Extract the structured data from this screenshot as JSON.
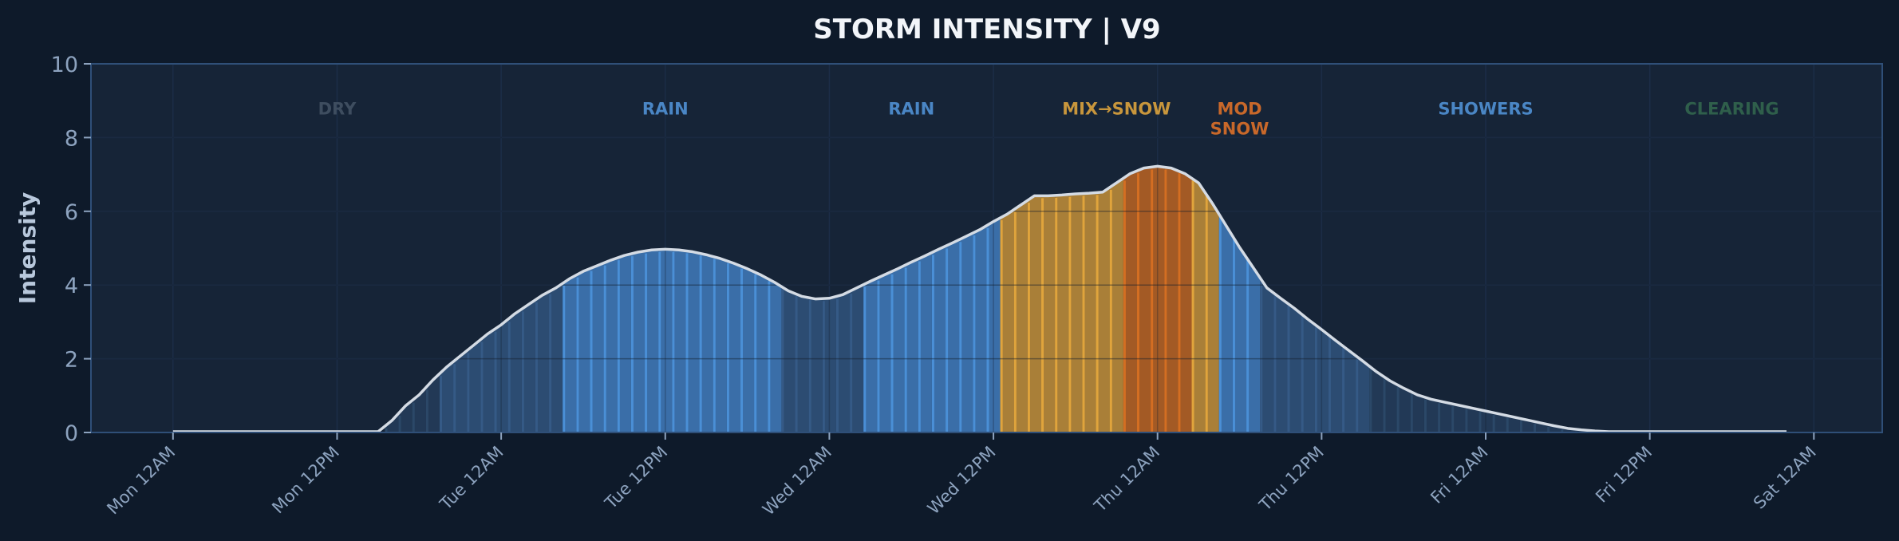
{
  "chart_data": {
    "type": "area",
    "title": "STORM INTENSITY  |  V9",
    "xlabel": "",
    "ylabel": "Intensity",
    "ylim": [
      0,
      10
    ],
    "yticks": [
      0,
      2,
      4,
      6,
      8,
      10
    ],
    "xlim_hours": [
      -6,
      125
    ],
    "x_unit": "hours since Mon 12AM",
    "xticks": [
      {
        "hour": 0,
        "label": "Mon 12AM"
      },
      {
        "hour": 12,
        "label": "Mon 12PM"
      },
      {
        "hour": 24,
        "label": "Tue 12AM"
      },
      {
        "hour": 36,
        "label": "Tue 12PM"
      },
      {
        "hour": 48,
        "label": "Wed 12AM"
      },
      {
        "hour": 60,
        "label": "Wed 12PM"
      },
      {
        "hour": 72,
        "label": "Thu 12AM"
      },
      {
        "hour": 84,
        "label": "Thu 12PM"
      },
      {
        "hour": 96,
        "label": "Fri 12AM"
      },
      {
        "hour": 108,
        "label": "Fri 12PM"
      },
      {
        "hour": 120,
        "label": "Sat 12AM"
      }
    ],
    "grid": true,
    "values": [
      0,
      0,
      0,
      0,
      0,
      0,
      0,
      0,
      0,
      0,
      0,
      0,
      0,
      0,
      0,
      0,
      0.3,
      0.7,
      1.0,
      1.4,
      1.75,
      2.05,
      2.35,
      2.65,
      2.9,
      3.2,
      3.45,
      3.7,
      3.9,
      4.15,
      4.35,
      4.5,
      4.65,
      4.78,
      4.87,
      4.93,
      4.95,
      4.93,
      4.88,
      4.8,
      4.7,
      4.57,
      4.42,
      4.25,
      4.05,
      3.82,
      3.67,
      3.6,
      3.62,
      3.72,
      3.9,
      4.08,
      4.25,
      4.42,
      4.6,
      4.77,
      4.95,
      5.12,
      5.3,
      5.48,
      5.7,
      5.9,
      6.15,
      6.4,
      6.4,
      6.42,
      6.45,
      6.47,
      6.5,
      6.75,
      7.0,
      7.15,
      7.2,
      7.15,
      7.0,
      6.75,
      6.2,
      5.6,
      5.0,
      4.45,
      3.9,
      3.62,
      3.35,
      3.05,
      2.77,
      2.48,
      2.2,
      1.92,
      1.63,
      1.38,
      1.18,
      1.0,
      0.88,
      0.8,
      0.72,
      0.64,
      0.56,
      0.48,
      0.4,
      0.32,
      0.24,
      0.16,
      0.09,
      0.05,
      0.02,
      0,
      0,
      0,
      0,
      0,
      0,
      0,
      0,
      0,
      0,
      0,
      0,
      0,
      0,
      0
    ],
    "bar_segments": [
      {
        "from": 16,
        "to": 19,
        "type": "light"
      },
      {
        "from": 20,
        "to": 28,
        "type": "moderate"
      },
      {
        "from": 29,
        "to": 44,
        "type": "rain"
      },
      {
        "from": 45,
        "to": 50,
        "type": "moderate"
      },
      {
        "from": 51,
        "to": 60,
        "type": "rain"
      },
      {
        "from": 61,
        "to": 69,
        "type": "mix"
      },
      {
        "from": 70,
        "to": 74,
        "type": "snow"
      },
      {
        "from": 75,
        "to": 76,
        "type": "mix"
      },
      {
        "from": 77,
        "to": 79,
        "type": "rain"
      },
      {
        "from": 80,
        "to": 87,
        "type": "moderate"
      },
      {
        "from": 88,
        "to": 104,
        "type": "light"
      }
    ],
    "bar_colors": {
      "light": {
        "fill": "#223956",
        "stripe": "#2b4868"
      },
      "moderate": {
        "fill": "#2c4c72",
        "stripe": "#355a86"
      },
      "rain": {
        "fill": "#3a6ea8",
        "stripe": "#4a8fd6"
      },
      "mix": {
        "fill": "#a97f38",
        "stripe": "#e0a43c"
      },
      "snow": {
        "fill": "#a35a25",
        "stripe": "#d46e22"
      }
    },
    "line_color": "#d4dbe4",
    "annotations": [
      {
        "hour": 12,
        "value": 8.8,
        "text": "DRY",
        "color": "#3e4d5f"
      },
      {
        "hour": 36,
        "value": 8.8,
        "text": "RAIN",
        "color": "#4a86c5"
      },
      {
        "hour": 54,
        "value": 8.8,
        "text": "RAIN",
        "color": "#4a86c5"
      },
      {
        "hour": 69,
        "value": 8.8,
        "text": "MIX→SNOW",
        "color": "#c8963c"
      },
      {
        "hour": 78,
        "value": 8.8,
        "text": "MOD",
        "color": "#c8682a"
      },
      {
        "hour": 78,
        "value": 8.3,
        "text": "SNOW",
        "color": "#c8682a"
      },
      {
        "hour": 96,
        "value": 8.8,
        "text": "SHOWERS",
        "color": "#4a86c5"
      },
      {
        "hour": 114,
        "value": 8.8,
        "text": "CLEARING",
        "color": "#2f5f4b"
      }
    ]
  }
}
